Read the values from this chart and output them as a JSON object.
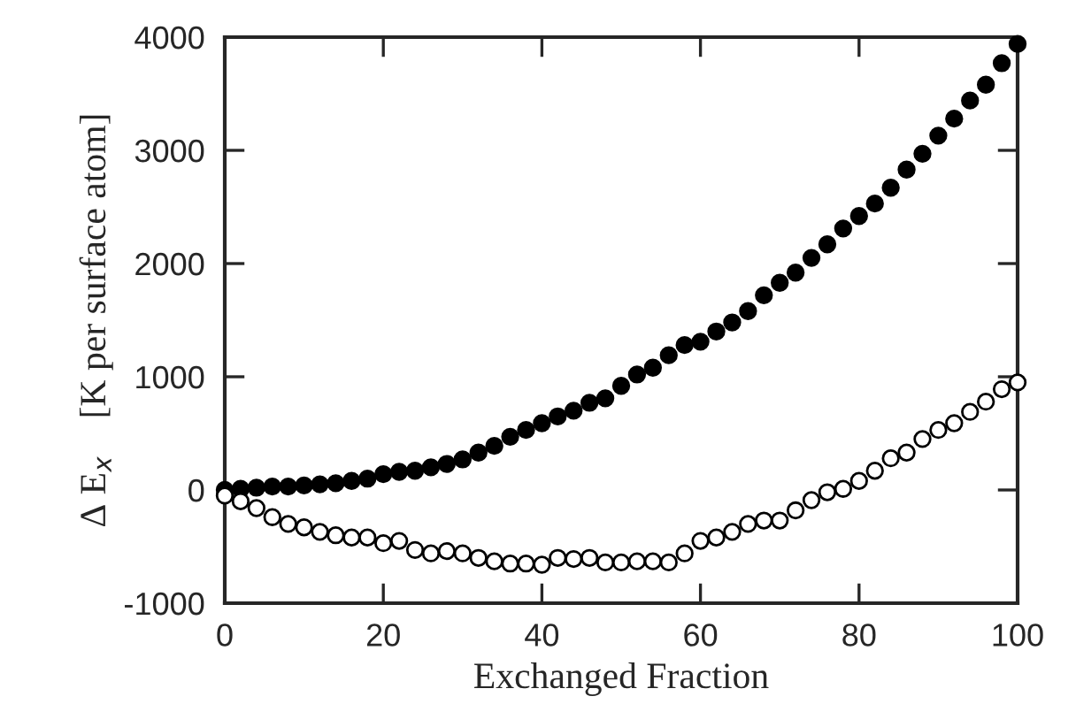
{
  "chart_data": {
    "type": "scatter",
    "xlabel": "Exchanged Fraction",
    "ylabel": "Δ E$_{x}$    [K per surface atom]",
    "x": [
      0,
      2,
      4,
      6,
      8,
      10,
      12,
      14,
      16,
      18,
      20,
      22,
      24,
      26,
      28,
      30,
      32,
      34,
      36,
      38,
      40,
      42,
      44,
      46,
      48,
      50,
      52,
      54,
      56,
      58,
      60,
      62,
      64,
      66,
      68,
      70,
      72,
      74,
      76,
      78,
      80,
      82,
      84,
      86,
      88,
      90,
      92,
      94,
      96,
      98,
      100
    ],
    "series": [
      {
        "color": "#000000",
        "values": [
          0,
          10,
          20,
          30,
          30,
          40,
          50,
          60,
          80,
          100,
          140,
          160,
          170,
          200,
          230,
          270,
          330,
          390,
          470,
          530,
          590,
          650,
          700,
          770,
          810,
          920,
          1020,
          1080,
          1190,
          1280,
          1310,
          1400,
          1480,
          1580,
          1720,
          1830,
          1920,
          2050,
          2170,
          2310,
          2420,
          2530,
          2670,
          2830,
          2970,
          3130,
          3280,
          3440,
          3580,
          3770,
          3940
        ]
      },
      {
        "color": "#ffffff",
        "values": [
          -50,
          -100,
          -160,
          -240,
          -300,
          -330,
          -370,
          -400,
          -420,
          -420,
          -470,
          -450,
          -530,
          -560,
          -540,
          -560,
          -600,
          -630,
          -650,
          -650,
          -660,
          -600,
          -610,
          -600,
          -640,
          -640,
          -630,
          -630,
          -640,
          -560,
          -450,
          -420,
          -370,
          -300,
          -270,
          -270,
          -180,
          -90,
          -20,
          10,
          80,
          170,
          280,
          330,
          450,
          530,
          590,
          690,
          780,
          890,
          950
        ]
      }
    ],
    "marker": "circle",
    "xlim": [
      0,
      100
    ],
    "ylim": [
      -1000,
      4000
    ],
    "xticks": [
      0,
      20,
      40,
      60,
      80,
      100
    ],
    "yticks": [
      -1000,
      0,
      1000,
      2000,
      3000,
      4000
    ],
    "grid": false,
    "legend": false
  }
}
